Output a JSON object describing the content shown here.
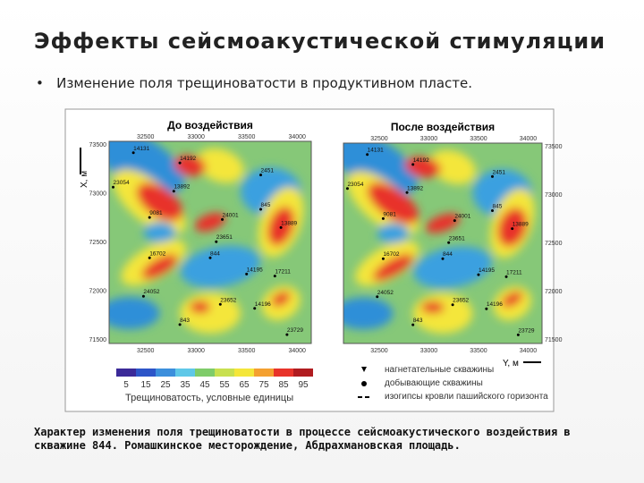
{
  "header": {
    "title": "Эффекты сейсмоакустической стимуляции"
  },
  "bullet": "Изменение поля трещиноватости в продуктивном пласте.",
  "figure": {
    "panels": [
      {
        "title": "До воздействия",
        "wells": [
          "14131",
          "14192",
          "2451",
          "23054",
          "13892",
          "9081",
          "845",
          "24001",
          "13889",
          "23651",
          "844",
          "16702",
          "14195",
          "17211",
          "24052",
          "23652",
          "14196",
          "843",
          "23729"
        ]
      },
      {
        "title": "После воздействия",
        "wells": [
          "14131",
          "14192",
          "2451",
          "23054",
          "13892",
          "9081",
          "845",
          "24001",
          "13889",
          "23651",
          "844",
          "16702",
          "14195",
          "17211",
          "24052",
          "23652",
          "14196",
          "843",
          "23729"
        ]
      }
    ],
    "x_axis_label": "X, м",
    "y_axis_label": "Y, м",
    "x_ticks": [
      "32500",
      "33000",
      "33500",
      "34000"
    ],
    "y_ticks": [
      "73500",
      "73000",
      "72500",
      "72000",
      "71500"
    ],
    "colorbar": {
      "labels": [
        "5",
        "15",
        "25",
        "35",
        "45",
        "55",
        "65",
        "75",
        "85",
        "95"
      ],
      "title": "Трещиноватость, условные единицы"
    },
    "legend": [
      "нагнетательные скважины",
      "добывающие скважины",
      "изогипсы кровли пашийского горизонта"
    ]
  },
  "caption": "Характер изменения поля трещиноватости в процессе сейсмоакустического воздействия в скважине 844. Ромашкинское месторождение, Абдрахмановская площадь."
}
